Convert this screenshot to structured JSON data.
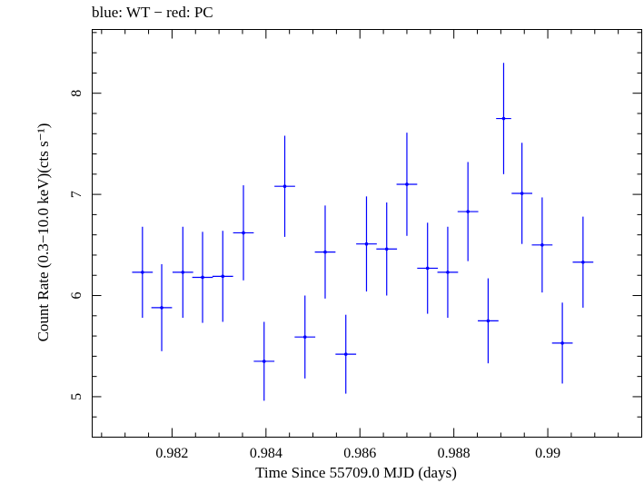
{
  "chart_data": {
    "type": "scatter",
    "title": "blue: WT − red: PC",
    "xlabel": "Time Since 55709.0 MJD (days)",
    "ylabel": "Count Rate (0.3−10.0 keV)(cts s⁻¹)",
    "xlim": [
      0.9803,
      0.992
    ],
    "ylim": [
      4.6,
      8.63
    ],
    "x_ticks": [
      0.982,
      0.984,
      0.986,
      0.988,
      0.99
    ],
    "x_tick_labels": [
      "0.982",
      "0.984",
      "0.986",
      "0.988",
      "0.99"
    ],
    "y_ticks": [
      5,
      6,
      7,
      8
    ],
    "y_tick_labels": [
      "5",
      "6",
      "7",
      "8"
    ],
    "grid": false,
    "colors": {
      "WT": "#0000ff",
      "PC": "#ff0000"
    },
    "series": [
      {
        "name": "WT",
        "color": "#0000ff",
        "points": [
          {
            "x": 0.98137,
            "xerr": 0.00022,
            "y": 6.23,
            "yerr": 0.45
          },
          {
            "x": 0.98178,
            "xerr": 0.00022,
            "y": 5.88,
            "yerr": 0.43
          },
          {
            "x": 0.98223,
            "xerr": 0.00022,
            "y": 6.23,
            "yerr": 0.45
          },
          {
            "x": 0.98265,
            "xerr": 0.00022,
            "y": 6.18,
            "yerr": 0.45
          },
          {
            "x": 0.98308,
            "xerr": 0.00022,
            "y": 6.19,
            "yerr": 0.45
          },
          {
            "x": 0.98352,
            "xerr": 0.00022,
            "y": 6.62,
            "yerr": 0.47
          },
          {
            "x": 0.98396,
            "xerr": 0.00022,
            "y": 5.35,
            "yerr": 0.39
          },
          {
            "x": 0.9844,
            "xerr": 0.00022,
            "y": 7.08,
            "yerr": 0.5
          },
          {
            "x": 0.98483,
            "xerr": 0.00022,
            "y": 5.59,
            "yerr": 0.41
          },
          {
            "x": 0.98526,
            "xerr": 0.00022,
            "y": 6.43,
            "yerr": 0.46
          },
          {
            "x": 0.9857,
            "xerr": 0.00022,
            "y": 5.42,
            "yerr": 0.39
          },
          {
            "x": 0.98614,
            "xerr": 0.00022,
            "y": 6.51,
            "yerr": 0.47
          },
          {
            "x": 0.98657,
            "xerr": 0.00022,
            "y": 6.46,
            "yerr": 0.46
          },
          {
            "x": 0.987,
            "xerr": 0.00022,
            "y": 7.1,
            "yerr": 0.51
          },
          {
            "x": 0.98744,
            "xerr": 0.00022,
            "y": 6.27,
            "yerr": 0.45
          },
          {
            "x": 0.98787,
            "xerr": 0.00022,
            "y": 6.23,
            "yerr": 0.45
          },
          {
            "x": 0.9883,
            "xerr": 0.00022,
            "y": 6.83,
            "yerr": 0.49
          },
          {
            "x": 0.98873,
            "xerr": 0.00022,
            "y": 5.75,
            "yerr": 0.42
          },
          {
            "x": 0.98906,
            "xerr": 0.00016,
            "y": 7.75,
            "yerr": 0.55
          },
          {
            "x": 0.98945,
            "xerr": 0.00022,
            "y": 7.01,
            "yerr": 0.5
          },
          {
            "x": 0.98988,
            "xerr": 0.00022,
            "y": 6.5,
            "yerr": 0.47
          },
          {
            "x": 0.99031,
            "xerr": 0.00022,
            "y": 5.53,
            "yerr": 0.4
          },
          {
            "x": 0.99075,
            "xerr": 0.00022,
            "y": 6.33,
            "yerr": 0.45
          }
        ]
      }
    ]
  }
}
